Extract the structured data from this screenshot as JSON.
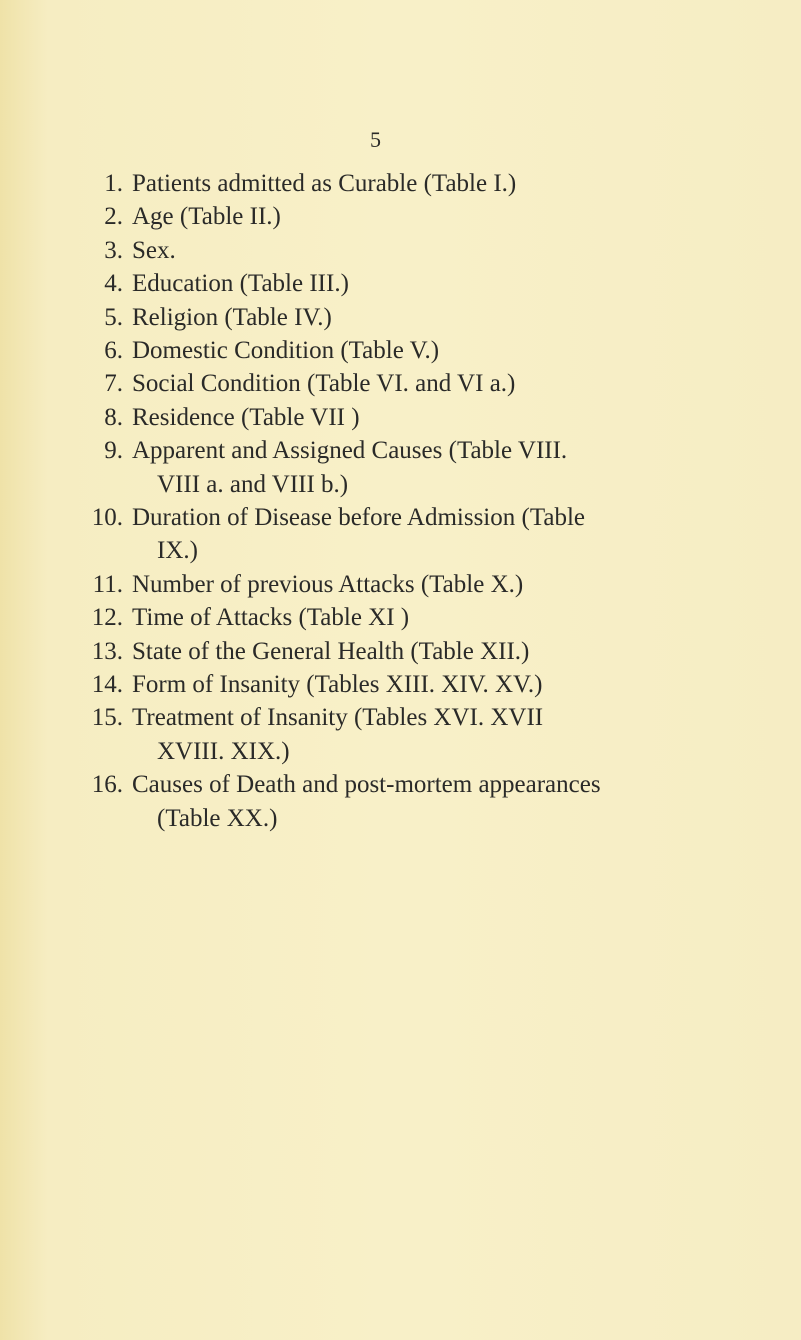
{
  "page_number": "5",
  "items": [
    {
      "number": "1.",
      "lines": [
        "Patients admitted as Curable (Table I.)"
      ]
    },
    {
      "number": "2.",
      "lines": [
        "Age (Table II.)"
      ]
    },
    {
      "number": "3.",
      "lines": [
        "Sex."
      ]
    },
    {
      "number": "4.",
      "lines": [
        "Education (Table III.)"
      ]
    },
    {
      "number": "5.",
      "lines": [
        "Religion (Table IV.)"
      ]
    },
    {
      "number": "6.",
      "lines": [
        "Domestic Condition (Table V.)"
      ]
    },
    {
      "number": "7.",
      "lines": [
        "Social Condition (Table VI. and VI a.)"
      ]
    },
    {
      "number": "8.",
      "lines": [
        "Residence (Table VII )"
      ]
    },
    {
      "number": "9.",
      "lines": [
        "Apparent and Assigned Causes (Table VIII.",
        "VIII a. and VIII b.)"
      ]
    },
    {
      "number": "10.",
      "lines": [
        "Duration of Disease before Admission (Table",
        "IX.)"
      ]
    },
    {
      "number": "11.",
      "lines": [
        "Number of previous Attacks (Table X.)"
      ]
    },
    {
      "number": "12.",
      "lines": [
        "Time of Attacks (Table XI )"
      ]
    },
    {
      "number": "13.",
      "lines": [
        "State of the General Health (Table XII.)"
      ]
    },
    {
      "number": "14.",
      "lines": [
        "Form of Insanity (Tables XIII. XIV. XV.)"
      ]
    },
    {
      "number": "15.",
      "lines": [
        "Treatment of Insanity (Tables XVI. XVII",
        "XVIII. XIX.)"
      ]
    },
    {
      "number": "16.",
      "lines": [
        "Causes of Death and post-mortem appearances",
        "(Table XX.)"
      ]
    }
  ]
}
